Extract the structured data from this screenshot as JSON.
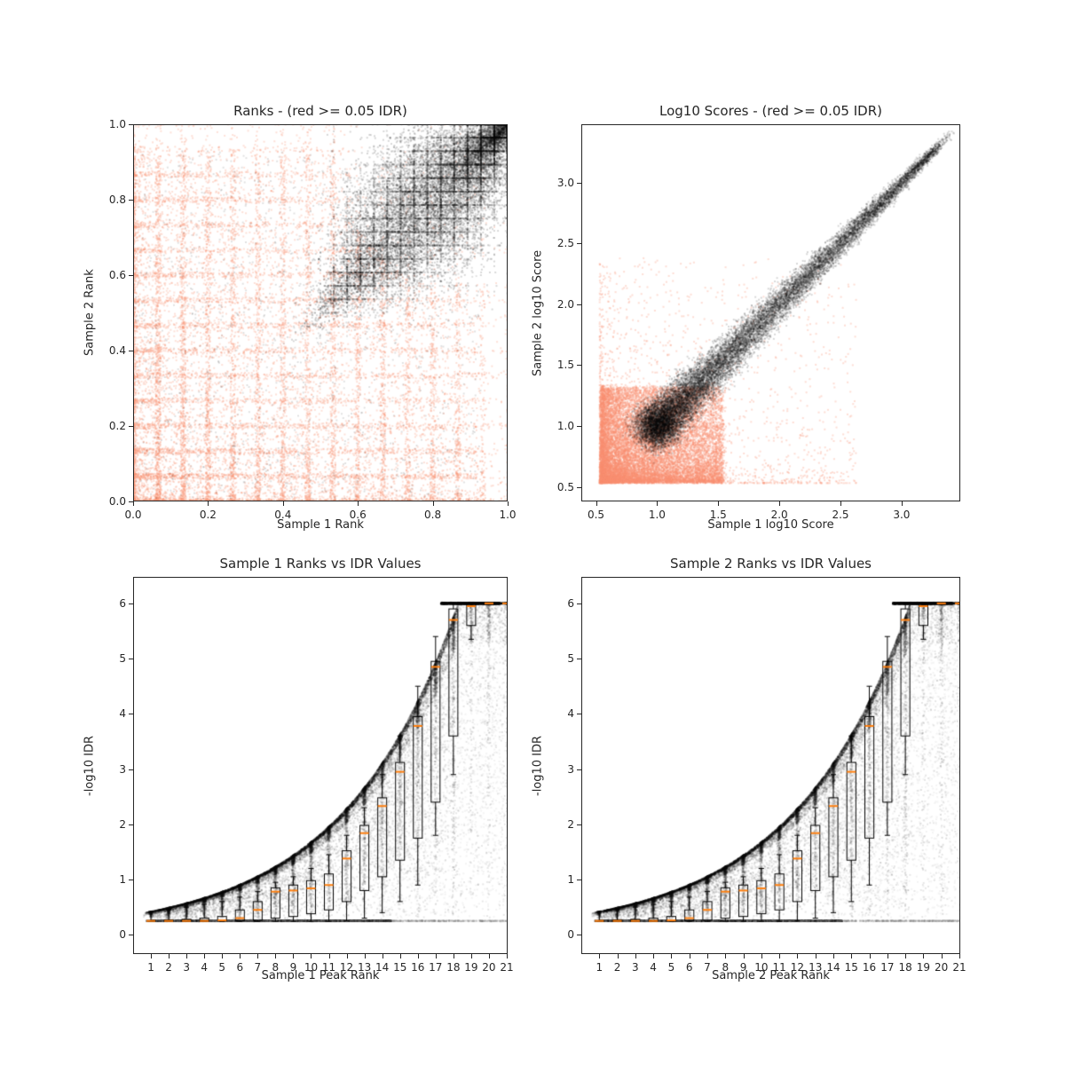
{
  "figure": {
    "background": "#ffffff",
    "text_color": "#262626",
    "red_color": "#f78f70",
    "black_color": "#000000",
    "median_color": "#ff7f0e"
  },
  "chart_data": [
    {
      "type": "scatter",
      "title": "Ranks - (red >= 0.05 IDR)",
      "xlabel": "Sample 1 Rank",
      "ylabel": "Sample 2 Rank",
      "xlim": [
        0,
        1
      ],
      "ylim": [
        0,
        1
      ],
      "grid": false,
      "xticks": {
        "values": [
          0,
          0.2,
          0.4,
          0.6,
          0.8,
          1.0
        ],
        "labels": [
          "0.0",
          "0.2",
          "0.4",
          "0.6",
          "0.8",
          "1.0"
        ]
      },
      "yticks": {
        "values": [
          0,
          0.2,
          0.4,
          0.6,
          0.8,
          1.0
        ],
        "labels": [
          "0.0",
          "0.2",
          "0.4",
          "0.6",
          "0.8",
          "1.0"
        ]
      },
      "series": [
        {
          "name": "IDR >= 0.05 (red)",
          "kind": "ranks_red",
          "color": "#f78f70",
          "alpha": 0.28,
          "n": 17000,
          "size": 2,
          "seed": 11
        },
        {
          "name": "IDR < 0.05 (black)",
          "kind": "ranks_black",
          "color": "#000000",
          "alpha": 0.16,
          "n": 18000,
          "size": 2,
          "seed": 12
        },
        {
          "name": "sparse black background",
          "kind": "uniform_rect",
          "color": "#000000",
          "alpha": 0.12,
          "n": 1600,
          "size": 2,
          "seed": 13,
          "x0": 0.0,
          "x1": 0.93,
          "y0": 0.0,
          "y1": 0.93
        }
      ]
    },
    {
      "type": "scatter",
      "title": "Log10 Scores - (red >= 0.05 IDR)",
      "xlabel": "Sample 1 log10 Score",
      "ylabel": "Sample 2 log10 Score",
      "xlim": [
        0.38,
        3.48
      ],
      "ylim": [
        0.38,
        3.48
      ],
      "grid": false,
      "xticks": {
        "values": [
          0.5,
          1.0,
          1.5,
          2.0,
          2.5,
          3.0
        ],
        "labels": [
          "0.5",
          "1.0",
          "1.5",
          "2.0",
          "2.5",
          "3.0"
        ]
      },
      "yticks": {
        "values": [
          0.5,
          1.0,
          1.5,
          2.0,
          2.5,
          3.0
        ],
        "labels": [
          "0.5",
          "1.0",
          "1.5",
          "2.0",
          "2.5",
          "3.0"
        ]
      },
      "series": [
        {
          "name": "IDR >= 0.05 (red)",
          "kind": "scores_red",
          "color": "#f78f70",
          "alpha": 0.3,
          "n": 17000,
          "size": 2,
          "seed": 21
        },
        {
          "name": "IDR < 0.05 (black)",
          "kind": "scores_black",
          "color": "#000000",
          "alpha": 0.16,
          "n": 16000,
          "size": 2,
          "seed": 22
        }
      ]
    },
    {
      "type": "scatter_box",
      "title": "Sample 1 Ranks vs IDR Values",
      "xlabel": "Sample 1 Peak Rank",
      "ylabel": "-log10 IDR",
      "xlim": [
        0,
        21.05
      ],
      "ylim": [
        -0.35,
        6.48
      ],
      "grid": false,
      "envelope": {
        "a": 0.42,
        "b": 0.154,
        "cap": 6.0
      },
      "xticks": {
        "values": [
          1,
          2,
          3,
          4,
          5,
          6,
          7,
          8,
          9,
          10,
          11,
          12,
          13,
          14,
          15,
          16,
          17,
          18,
          19,
          20,
          21
        ],
        "labels": [
          "1",
          "2",
          "3",
          "4",
          "5",
          "6",
          "7",
          "8",
          "9",
          "10",
          "11",
          "12",
          "13",
          "14",
          "15",
          "16",
          "17",
          "18",
          "19",
          "20",
          "21"
        ]
      },
      "yticks": {
        "values": [
          0,
          1,
          2,
          3,
          4,
          5,
          6
        ],
        "labels": [
          "0",
          "1",
          "2",
          "3",
          "4",
          "5",
          "6"
        ]
      },
      "series": [
        {
          "name": "-log10 IDR scatter",
          "kind": "idr_black",
          "color": "#000000",
          "alpha": 0.1,
          "n": 21000,
          "size": 2,
          "seed": 31
        },
        {
          "name": "upper envelope",
          "kind": "idr_env",
          "color": "#000000",
          "alpha": 0.22,
          "n": 3500,
          "size": 2,
          "seed": 32
        },
        {
          "name": "floor line 0.25",
          "kind": "idr_floor",
          "color": "#000000",
          "alpha": 0.3,
          "n": 2600,
          "size": 2,
          "seed": 33,
          "span": 13.5
        },
        {
          "name": "floor line gray tail",
          "kind": "idr_floor_gray",
          "color": "#777777",
          "alpha": 0.25,
          "n": 800,
          "size": 2,
          "seed": 34,
          "span": 20
        },
        {
          "name": "saturated at 6",
          "kind": "idr_six",
          "color": "#000000",
          "alpha": 0.3,
          "n": 2200,
          "size": 2,
          "seed": 35,
          "x0": 17.3,
          "x1": 20.6
        },
        {
          "name": "gray spray right",
          "kind": "idr_gray",
          "color": "#999999",
          "alpha": 0.12,
          "n": 2600,
          "size": 2,
          "seed": 36
        }
      ],
      "box_color": "#000000",
      "median_color": "#ff7f0e",
      "box_stats_order": [
        "lo",
        "q1",
        "med",
        "q3",
        "hi"
      ],
      "box_stats": [
        [
          0.24,
          0.24,
          0.25,
          0.26,
          0.42
        ],
        [
          0.24,
          0.24,
          0.25,
          0.27,
          0.46
        ],
        [
          0.24,
          0.24,
          0.25,
          0.28,
          0.5
        ],
        [
          0.24,
          0.24,
          0.25,
          0.3,
          0.55
        ],
        [
          0.24,
          0.25,
          0.26,
          0.33,
          0.6
        ],
        [
          0.24,
          0.25,
          0.3,
          0.45,
          0.68
        ],
        [
          0.24,
          0.26,
          0.45,
          0.6,
          0.78
        ],
        [
          0.24,
          0.3,
          0.78,
          0.85,
          0.95
        ],
        [
          0.24,
          0.33,
          0.8,
          0.9,
          1.05
        ],
        [
          0.24,
          0.38,
          0.84,
          0.98,
          1.2
        ],
        [
          0.24,
          0.45,
          0.9,
          1.1,
          1.45
        ],
        [
          0.25,
          0.6,
          1.38,
          1.52,
          1.8
        ],
        [
          0.3,
          0.8,
          1.84,
          1.98,
          2.3
        ],
        [
          0.4,
          1.05,
          2.33,
          2.48,
          2.9
        ],
        [
          0.6,
          1.35,
          2.95,
          3.12,
          3.6
        ],
        [
          0.9,
          1.75,
          3.78,
          3.95,
          4.5
        ],
        [
          1.8,
          2.4,
          4.85,
          4.95,
          5.4
        ],
        [
          2.9,
          3.6,
          5.7,
          5.9,
          6.0
        ],
        [
          5.35,
          5.6,
          5.95,
          6.0,
          6.0
        ],
        [
          6.0,
          6.0,
          6.0,
          6.0,
          6.0
        ],
        [
          6.0,
          6.0,
          6.0,
          6.0,
          6.0
        ]
      ]
    },
    {
      "type": "scatter_box",
      "title": "Sample 2 Ranks vs IDR Values",
      "xlabel": "Sample 2 Peak Rank",
      "ylabel": "-log10 IDR",
      "xlim": [
        0,
        21.05
      ],
      "ylim": [
        -0.35,
        6.48
      ],
      "grid": false,
      "envelope": {
        "a": 0.42,
        "b": 0.154,
        "cap": 6.0
      },
      "xticks": {
        "values": [
          1,
          2,
          3,
          4,
          5,
          6,
          7,
          8,
          9,
          10,
          11,
          12,
          13,
          14,
          15,
          16,
          17,
          18,
          19,
          20,
          21
        ],
        "labels": [
          "1",
          "2",
          "3",
          "4",
          "5",
          "6",
          "7",
          "8",
          "9",
          "10",
          "11",
          "12",
          "13",
          "14",
          "15",
          "16",
          "17",
          "18",
          "19",
          "20",
          "21"
        ]
      },
      "yticks": {
        "values": [
          0,
          1,
          2,
          3,
          4,
          5,
          6
        ],
        "labels": [
          "0",
          "1",
          "2",
          "3",
          "4",
          "5",
          "6"
        ]
      },
      "series": [
        {
          "name": "-log10 IDR scatter",
          "kind": "idr_black",
          "color": "#000000",
          "alpha": 0.1,
          "n": 21000,
          "size": 2,
          "seed": 131
        },
        {
          "name": "upper envelope",
          "kind": "idr_env",
          "color": "#000000",
          "alpha": 0.22,
          "n": 3500,
          "size": 2,
          "seed": 132
        },
        {
          "name": "floor line 0.25",
          "kind": "idr_floor",
          "color": "#000000",
          "alpha": 0.3,
          "n": 2600,
          "size": 2,
          "seed": 133,
          "span": 13.5
        },
        {
          "name": "floor line gray tail",
          "kind": "idr_floor_gray",
          "color": "#777777",
          "alpha": 0.25,
          "n": 800,
          "size": 2,
          "seed": 134,
          "span": 20
        },
        {
          "name": "saturated at 6",
          "kind": "idr_six",
          "color": "#000000",
          "alpha": 0.3,
          "n": 2200,
          "size": 2,
          "seed": 135,
          "x0": 17.3,
          "x1": 20.6
        },
        {
          "name": "gray spray right",
          "kind": "idr_gray",
          "color": "#999999",
          "alpha": 0.12,
          "n": 2600,
          "size": 2,
          "seed": 136
        }
      ],
      "box_color": "#000000",
      "median_color": "#ff7f0e",
      "box_stats_order": [
        "lo",
        "q1",
        "med",
        "q3",
        "hi"
      ],
      "box_stats": [
        [
          0.24,
          0.24,
          0.25,
          0.26,
          0.42
        ],
        [
          0.24,
          0.24,
          0.25,
          0.27,
          0.46
        ],
        [
          0.24,
          0.24,
          0.25,
          0.28,
          0.5
        ],
        [
          0.24,
          0.24,
          0.25,
          0.3,
          0.55
        ],
        [
          0.24,
          0.25,
          0.26,
          0.33,
          0.6
        ],
        [
          0.24,
          0.25,
          0.3,
          0.45,
          0.68
        ],
        [
          0.24,
          0.26,
          0.45,
          0.6,
          0.78
        ],
        [
          0.24,
          0.3,
          0.78,
          0.85,
          0.95
        ],
        [
          0.24,
          0.33,
          0.8,
          0.9,
          1.05
        ],
        [
          0.24,
          0.38,
          0.84,
          0.98,
          1.2
        ],
        [
          0.24,
          0.45,
          0.9,
          1.1,
          1.45
        ],
        [
          0.25,
          0.6,
          1.38,
          1.52,
          1.8
        ],
        [
          0.3,
          0.8,
          1.84,
          1.98,
          2.3
        ],
        [
          0.4,
          1.05,
          2.33,
          2.48,
          2.9
        ],
        [
          0.6,
          1.35,
          2.95,
          3.12,
          3.6
        ],
        [
          0.9,
          1.75,
          3.78,
          3.95,
          4.5
        ],
        [
          1.8,
          2.4,
          4.85,
          4.95,
          5.4
        ],
        [
          2.9,
          3.6,
          5.7,
          5.9,
          6.0
        ],
        [
          5.35,
          5.6,
          5.95,
          6.0,
          6.0
        ],
        [
          6.0,
          6.0,
          6.0,
          6.0,
          6.0
        ],
        [
          6.0,
          6.0,
          6.0,
          6.0,
          6.0
        ]
      ]
    }
  ]
}
